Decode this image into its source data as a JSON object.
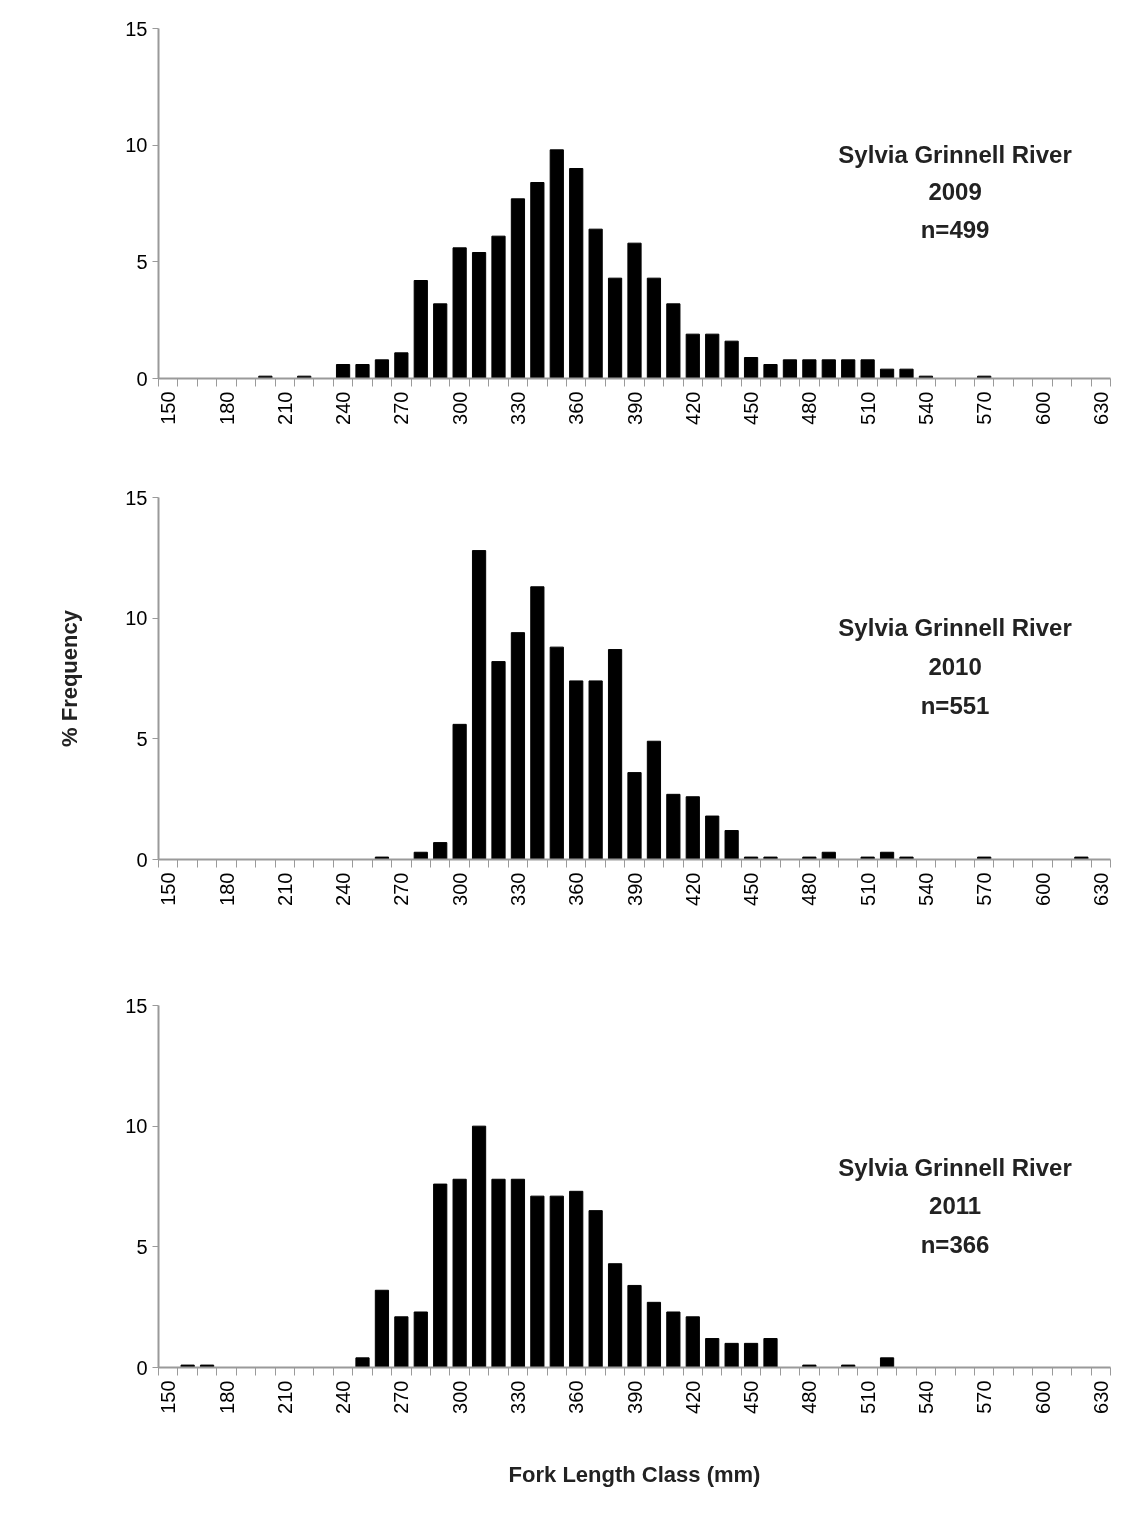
{
  "chart_data": [
    {
      "type": "bar",
      "categories": [
        "150",
        null,
        null,
        "180",
        null,
        null,
        "210",
        null,
        null,
        "240",
        null,
        null,
        "270",
        null,
        null,
        "300",
        null,
        null,
        "330",
        null,
        null,
        "360",
        null,
        null,
        "390",
        null,
        null,
        "420",
        null,
        null,
        "450",
        null,
        null,
        "480",
        null,
        null,
        "510",
        null,
        null,
        "540",
        null,
        null,
        "570",
        null,
        null,
        "600",
        null,
        null,
        "630"
      ],
      "values": [
        0,
        0,
        0,
        0,
        0,
        0.1,
        0,
        0.1,
        0,
        0.6,
        0.6,
        0.8,
        1.1,
        4.2,
        3.2,
        5.6,
        5.4,
        6.1,
        7.7,
        8.4,
        9.8,
        9.0,
        6.4,
        4.3,
        5.8,
        4.3,
        3.2,
        1.9,
        1.9,
        1.6,
        0.9,
        0.6,
        0.8,
        0.8,
        0.8,
        0.8,
        0.8,
        0.4,
        0.4,
        0.1,
        0,
        0,
        0.1,
        0,
        0,
        0,
        0,
        0,
        0
      ],
      "color": "#000000",
      "ylim": [
        0,
        15
      ],
      "yticks": [
        0,
        5,
        10,
        15
      ],
      "annotations": [
        "Sylvia Grinnell River",
        "2009",
        "n=499"
      ]
    },
    {
      "type": "bar",
      "categories": [
        "150",
        null,
        null,
        "180",
        null,
        null,
        "210",
        null,
        null,
        "240",
        null,
        null,
        "270",
        null,
        null,
        "300",
        null,
        null,
        "330",
        null,
        null,
        "360",
        null,
        null,
        "390",
        null,
        null,
        "420",
        null,
        null,
        "450",
        null,
        null,
        "480",
        null,
        null,
        "510",
        null,
        null,
        "540",
        null,
        null,
        "570",
        null,
        null,
        "600",
        null,
        null,
        "630"
      ],
      "values": [
        0,
        0,
        0,
        0,
        0,
        0,
        0,
        0,
        0,
        0,
        0,
        0.1,
        0,
        0.3,
        0.7,
        5.6,
        12.8,
        8.2,
        9.4,
        11.3,
        8.8,
        7.4,
        7.4,
        8.7,
        3.6,
        4.9,
        2.7,
        2.6,
        1.8,
        1.2,
        0.1,
        0.1,
        0,
        0.1,
        0.3,
        0,
        0.1,
        0.3,
        0.1,
        0,
        0,
        0,
        0.1,
        0,
        0,
        0,
        0,
        0.1,
        0
      ],
      "color": "#000000",
      "ylim": [
        0,
        15
      ],
      "yticks": [
        0,
        5,
        10,
        15
      ],
      "ylabel": "% Frequency",
      "annotations": [
        "Sylvia Grinnell River",
        "2010",
        "n=551"
      ]
    },
    {
      "type": "bar",
      "categories": [
        "150",
        null,
        null,
        "180",
        null,
        null,
        "210",
        null,
        null,
        "240",
        null,
        null,
        "270",
        null,
        null,
        "300",
        null,
        null,
        "330",
        null,
        null,
        "360",
        null,
        null,
        "390",
        null,
        null,
        "420",
        null,
        null,
        "450",
        null,
        null,
        "480",
        null,
        null,
        "510",
        null,
        null,
        "540",
        null,
        null,
        "570",
        null,
        null,
        "600",
        null,
        null,
        "630"
      ],
      "values": [
        0,
        0.1,
        0.1,
        0,
        0,
        0,
        0,
        0,
        0,
        0,
        0.4,
        3.2,
        2.1,
        2.3,
        7.6,
        7.8,
        10.0,
        7.8,
        7.8,
        7.1,
        7.1,
        7.3,
        6.5,
        4.3,
        3.4,
        2.7,
        2.3,
        2.1,
        1.2,
        1.0,
        1.0,
        1.2,
        0,
        0.1,
        0,
        0.1,
        0,
        0.4,
        0,
        0,
        0,
        0,
        0,
        0,
        0,
        0,
        0,
        0,
        0
      ],
      "color": "#000000",
      "ylim": [
        0,
        15
      ],
      "yticks": [
        0,
        5,
        10,
        15
      ],
      "xlabel": "Fork Length Class (mm)",
      "annotations": [
        "Sylvia Grinnell River",
        "2011",
        "n=366"
      ]
    }
  ]
}
